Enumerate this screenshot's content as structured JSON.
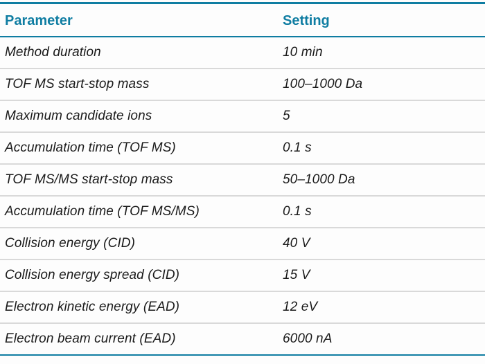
{
  "table": {
    "columns": [
      "Parameter",
      "Setting"
    ],
    "rows": [
      {
        "parameter": "Method duration",
        "setting": "10 min"
      },
      {
        "parameter": "TOF MS start-stop mass",
        "setting": "100–1000 Da"
      },
      {
        "parameter": "Maximum candidate ions",
        "setting": "5"
      },
      {
        "parameter": "Accumulation time (TOF MS)",
        "setting": "0.1 s"
      },
      {
        "parameter": "TOF MS/MS start-stop mass",
        "setting": "50–1000 Da"
      },
      {
        "parameter": "Accumulation time (TOF MS/MS)",
        "setting": "0.1 s"
      },
      {
        "parameter": "Collision energy (CID)",
        "setting": "40 V"
      },
      {
        "parameter": "Collision energy spread (CID)",
        "setting": "15 V"
      },
      {
        "parameter": "Electron kinetic energy (EAD)",
        "setting": "12 eV"
      },
      {
        "parameter": "Electron beam current (EAD)",
        "setting": "6000 nA"
      }
    ]
  },
  "colors": {
    "accent": "#0f7da2",
    "divider": "#d9d9d9",
    "text": "#1a1a1a",
    "bg": "#fdfdfd"
  }
}
